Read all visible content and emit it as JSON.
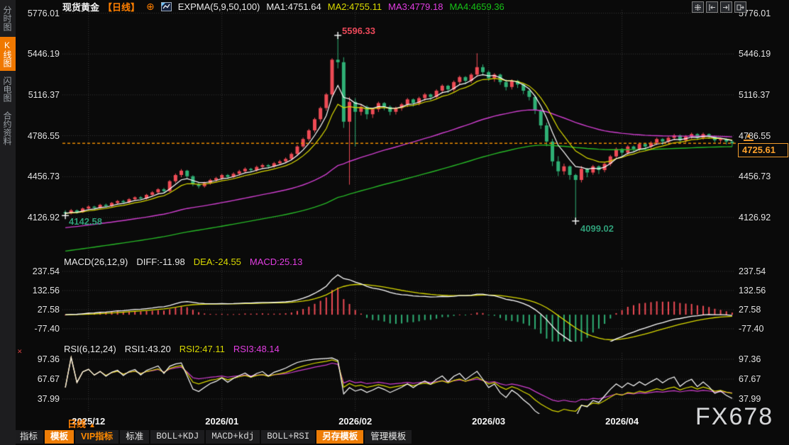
{
  "app": {
    "header": {
      "symbol": "现货黄金",
      "period_label": "【日线】",
      "plus_icon": "⊕",
      "indicator_title": "EXPMA(5,9,50,100)",
      "ma_values": [
        {
          "label": "MA1:4751.64",
          "color": "#e8e8e8"
        },
        {
          "label": "MA2:4755.11",
          "color": "#d9d900"
        },
        {
          "label": "MA3:4779.18",
          "color": "#e23de2"
        },
        {
          "label": "MA4:4659.36",
          "color": "#16c216"
        }
      ]
    },
    "sidebar": {
      "items": [
        {
          "label": "分时图",
          "active": false
        },
        {
          "label": "K线图",
          "active": true
        },
        {
          "label": "闪电图",
          "active": false
        },
        {
          "label": "合约资料",
          "active": false
        }
      ]
    },
    "toolbar_icons": [
      "crosshair",
      "scale-left",
      "scale-right",
      "restore-view"
    ],
    "bottom": {
      "period_selector": "日线",
      "period_arrow": "▲",
      "tabs": [
        {
          "label": "指标",
          "style": "plain"
        },
        {
          "label": "模板",
          "style": "active"
        },
        {
          "label": "VIP指标",
          "style": "vip"
        },
        {
          "label": "标准",
          "style": "plain"
        },
        {
          "label": "BOLL+KDJ",
          "style": "mono"
        },
        {
          "label": "MACD+kdj",
          "style": "mono"
        },
        {
          "label": "BOLL+RSI",
          "style": "mono"
        },
        {
          "label": "另存模板",
          "style": "active"
        },
        {
          "label": "管理模板",
          "style": "plain"
        }
      ]
    },
    "watermark": "FX678"
  },
  "colors": {
    "up": "#ee4b55",
    "down": "#2fb075",
    "ma1": "#ffffff",
    "ma2": "#d9d900",
    "ma3": "#cf3fcf",
    "ma4": "#27b827",
    "accent_orange": "#f07800",
    "price_line": "#e98a00",
    "grid": "#3a3a3a",
    "annotation_red": "#ea4859",
    "annotation_green": "#2f9e78"
  },
  "chart_data": {
    "type": "candlestick",
    "title": "现货黄金 日线",
    "x_labels": [
      "2025/12",
      "2026/01",
      "2026/02",
      "2026/03",
      "2026/04"
    ],
    "month_day_index": [
      4,
      27,
      50,
      73,
      96
    ],
    "price_axis_ticks": [
      "5776.01",
      "5446.19",
      "5116.37",
      "4786.55",
      "4456.73",
      "4126.92"
    ],
    "last_price": "4725.61",
    "annotations": {
      "peak": "5596.33",
      "start_low": "4142.58",
      "march_low": "4099.02"
    },
    "macd": {
      "title": "MACD(26,12,9)",
      "diff_label": "DIFF:-11.98",
      "dea_label": "DEA:-24.55",
      "macd_label": "MACD:25.13",
      "axis_ticks": [
        "237.54",
        "132.56",
        "27.58",
        "-77.40"
      ]
    },
    "rsi": {
      "title": "RSI(6,12,24)",
      "rsi1_label": "RSI1:43.20",
      "rsi2_label": "RSI2:47.11",
      "rsi3_label": "RSI3:48.14",
      "axis_ticks": [
        "97.36",
        "67.67",
        "37.99"
      ]
    },
    "candles": [
      [
        4170,
        4186,
        4142.58,
        4160
      ],
      [
        4160,
        4196,
        4152,
        4185
      ],
      [
        4185,
        4192,
        4158,
        4170
      ],
      [
        4170,
        4208,
        4165,
        4200
      ],
      [
        4200,
        4226,
        4188,
        4215
      ],
      [
        4215,
        4222,
        4190,
        4205
      ],
      [
        4205,
        4238,
        4198,
        4230
      ],
      [
        4230,
        4240,
        4206,
        4220
      ],
      [
        4220,
        4252,
        4212,
        4245
      ],
      [
        4245,
        4268,
        4232,
        4260
      ],
      [
        4260,
        4270,
        4236,
        4250
      ],
      [
        4250,
        4284,
        4242,
        4275
      ],
      [
        4275,
        4298,
        4262,
        4290
      ],
      [
        4290,
        4299,
        4266,
        4280
      ],
      [
        4280,
        4318,
        4272,
        4310
      ],
      [
        4310,
        4340,
        4298,
        4330
      ],
      [
        4330,
        4364,
        4318,
        4355
      ],
      [
        4355,
        4366,
        4326,
        4340
      ],
      [
        4340,
        4430,
        4332,
        4420
      ],
      [
        4420,
        4482,
        4405,
        4470
      ],
      [
        4470,
        4518,
        4452,
        4505
      ],
      [
        4505,
        4512,
        4446,
        4460
      ],
      [
        4460,
        4468,
        4380,
        4395
      ],
      [
        4395,
        4412,
        4362,
        4380
      ],
      [
        4380,
        4416,
        4368,
        4405
      ],
      [
        4405,
        4440,
        4392,
        4430
      ],
      [
        4430,
        4455,
        4414,
        4445
      ],
      [
        4445,
        4480,
        4430,
        4470
      ],
      [
        4470,
        4478,
        4438,
        4455
      ],
      [
        4455,
        4492,
        4444,
        4480
      ],
      [
        4480,
        4512,
        4466,
        4500
      ],
      [
        4500,
        4532,
        4486,
        4520
      ],
      [
        4520,
        4528,
        4492,
        4510
      ],
      [
        4510,
        4546,
        4498,
        4535
      ],
      [
        4535,
        4562,
        4520,
        4550
      ],
      [
        4550,
        4558,
        4522,
        4540
      ],
      [
        4540,
        4576,
        4528,
        4565
      ],
      [
        4565,
        4592,
        4550,
        4580
      ],
      [
        4580,
        4612,
        4566,
        4600
      ],
      [
        4600,
        4652,
        4588,
        4640
      ],
      [
        4640,
        4712,
        4628,
        4700
      ],
      [
        4700,
        4772,
        4688,
        4760
      ],
      [
        4760,
        4842,
        4745,
        4830
      ],
      [
        4830,
        4932,
        4812,
        4920
      ],
      [
        4920,
        5022,
        4900,
        5010
      ],
      [
        5010,
        5132,
        4988,
        5120
      ],
      [
        5120,
        5412,
        5100,
        5400
      ],
      [
        5400,
        5596.33,
        5330,
        5380
      ],
      [
        5380,
        5420,
        4850,
        4900
      ],
      [
        4900,
        5100,
        4392,
        5060
      ],
      [
        5060,
        5090,
        4700,
        4980
      ],
      [
        4980,
        5042,
        4950,
        5020
      ],
      [
        5020,
        5032,
        4920,
        4960
      ],
      [
        4960,
        5012,
        4930,
        5000
      ],
      [
        5000,
        5062,
        4978,
        5050
      ],
      [
        5050,
        5058,
        4992,
        5020
      ],
      [
        5020,
        5032,
        4952,
        4980
      ],
      [
        4980,
        5022,
        4958,
        5010
      ],
      [
        5010,
        5052,
        4988,
        5040
      ],
      [
        5040,
        5092,
        5018,
        5080
      ],
      [
        5080,
        5088,
        5022,
        5050
      ],
      [
        5050,
        5102,
        5032,
        5090
      ],
      [
        5090,
        5132,
        5068,
        5120
      ],
      [
        5120,
        5128,
        5072,
        5100
      ],
      [
        5100,
        5162,
        5082,
        5150
      ],
      [
        5150,
        5202,
        5128,
        5190
      ],
      [
        5190,
        5198,
        5132,
        5160
      ],
      [
        5160,
        5232,
        5142,
        5220
      ],
      [
        5220,
        5272,
        5198,
        5260
      ],
      [
        5260,
        5268,
        5202,
        5230
      ],
      [
        5230,
        5292,
        5212,
        5280
      ],
      [
        5280,
        5452,
        5262,
        5340
      ],
      [
        5340,
        5362,
        5272,
        5300
      ],
      [
        5300,
        5312,
        5228,
        5250
      ],
      [
        5250,
        5292,
        5222,
        5280
      ],
      [
        5280,
        5288,
        5198,
        5220
      ],
      [
        5220,
        5242,
        5152,
        5180
      ],
      [
        5180,
        5242,
        5160,
        5230
      ],
      [
        5230,
        5238,
        5172,
        5200
      ],
      [
        5200,
        5212,
        5122,
        5150
      ],
      [
        5150,
        5162,
        5072,
        5100
      ],
      [
        5100,
        5112,
        4962,
        4990
      ],
      [
        4990,
        5002,
        4842,
        4870
      ],
      [
        4870,
        4892,
        4702,
        4740
      ],
      [
        4740,
        4762,
        4542,
        4580
      ],
      [
        4580,
        4622,
        4462,
        4500
      ],
      [
        4500,
        4562,
        4472,
        4540
      ],
      [
        4540,
        4548,
        4432,
        4470
      ],
      [
        4470,
        4480,
        4099.02,
        4430
      ],
      [
        4430,
        4542,
        4410,
        4520
      ],
      [
        4520,
        4528,
        4452,
        4490
      ],
      [
        4490,
        4552,
        4472,
        4540
      ],
      [
        4540,
        4548,
        4478,
        4510
      ],
      [
        4510,
        4572,
        4492,
        4560
      ],
      [
        4560,
        4632,
        4542,
        4620
      ],
      [
        4620,
        4692,
        4602,
        4680
      ],
      [
        4680,
        4688,
        4622,
        4650
      ],
      [
        4650,
        4712,
        4632,
        4700
      ],
      [
        4700,
        4708,
        4652,
        4680
      ],
      [
        4680,
        4732,
        4662,
        4720
      ],
      [
        4720,
        4728,
        4668,
        4700
      ],
      [
        4700,
        4742,
        4682,
        4730
      ],
      [
        4730,
        4772,
        4712,
        4760
      ],
      [
        4760,
        4768,
        4712,
        4740
      ],
      [
        4740,
        4782,
        4722,
        4770
      ],
      [
        4770,
        4802,
        4752,
        4790
      ],
      [
        4790,
        4798,
        4732,
        4750
      ],
      [
        4750,
        4792,
        4732,
        4780
      ],
      [
        4780,
        4812,
        4762,
        4800
      ],
      [
        4800,
        4808,
        4752,
        4770
      ],
      [
        4770,
        4812,
        4754,
        4800
      ],
      [
        4800,
        4806,
        4762,
        4780
      ],
      [
        4780,
        4788,
        4732,
        4750
      ],
      [
        4750,
        4772,
        4728,
        4760
      ],
      [
        4760,
        4768,
        4716,
        4740
      ],
      [
        4740,
        4752,
        4700,
        4725.61
      ]
    ]
  }
}
